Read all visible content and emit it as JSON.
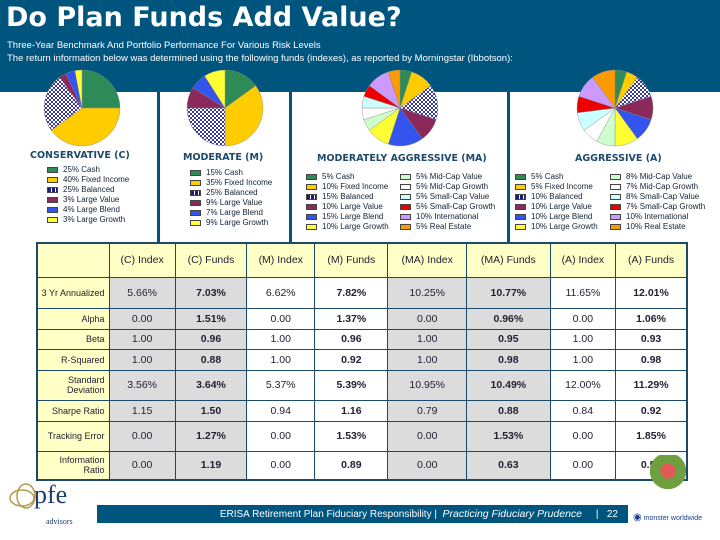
{
  "header": {
    "title": "Do Plan Funds Add Value?",
    "subtitle1": "Three-Year Benchmark And Portfolio Performance For Various Risk Levels",
    "subtitle2": "The return information below was determined using the following funds (indexes), as reported by Morningstar (Ibbotson):"
  },
  "colors": {
    "Cash": "#2e8b57",
    "Fixed Income": "#ffcc00",
    "Balanced": "pattern",
    "Large Value": "#8b2a5a",
    "Large Blend": "#3355ee",
    "Large Growth": "#ffff33",
    "Mid-Cap Value": "#ccffcc",
    "Mid-Cap Growth": "#ffffff",
    "Small-Cap Value": "#ccffff",
    "Small-Cap Growth": "#ee0000",
    "International": "#cc99ff",
    "Real Estate": "#ff9900"
  },
  "pies": [
    {
      "name": "CONSERVATIVE (C)",
      "slices": [
        {
          "label": "25% Cash",
          "cat": "Cash",
          "value": 25
        },
        {
          "label": "40% Fixed Income",
          "cat": "Fixed Income",
          "value": 40
        },
        {
          "label": "25% Balanced",
          "cat": "Balanced",
          "value": 25
        },
        {
          "label": "3% Large Value",
          "cat": "Large Value",
          "value": 3
        },
        {
          "label": "4% Large Blend",
          "cat": "Large Blend",
          "value": 4
        },
        {
          "label": "3% Large Growth",
          "cat": "Large Growth",
          "value": 3
        }
      ]
    },
    {
      "name": "MODERATE (M)",
      "slices": [
        {
          "label": "15% Cash",
          "cat": "Cash",
          "value": 15
        },
        {
          "label": "35% Fixed Income",
          "cat": "Fixed Income",
          "value": 35
        },
        {
          "label": "25% Balanced",
          "cat": "Balanced",
          "value": 25
        },
        {
          "label": "9% Large Value",
          "cat": "Large Value",
          "value": 9
        },
        {
          "label": "7% Large Blend",
          "cat": "Large Blend",
          "value": 7
        },
        {
          "label": "9% Large Growth",
          "cat": "Large Growth",
          "value": 9
        }
      ]
    },
    {
      "name": "MODERATELY AGGRESSIVE (MA)",
      "slices": [
        {
          "label": "5% Cash",
          "cat": "Cash",
          "value": 5
        },
        {
          "label": "10% Fixed Income",
          "cat": "Fixed Income",
          "value": 10
        },
        {
          "label": "15% Balanced",
          "cat": "Balanced",
          "value": 15
        },
        {
          "label": "10% Large Value",
          "cat": "Large Value",
          "value": 10
        },
        {
          "label": "15% Large Blend",
          "cat": "Large Blend",
          "value": 15
        },
        {
          "label": "10% Large Growth",
          "cat": "Large Growth",
          "value": 10
        },
        {
          "label": "5% Mid-Cap Value",
          "cat": "Mid-Cap Value",
          "value": 5
        },
        {
          "label": "5% Mid-Cap Growth",
          "cat": "Mid-Cap Growth",
          "value": 5
        },
        {
          "label": "5% Small-Cap Value",
          "cat": "Small-Cap Value",
          "value": 5
        },
        {
          "label": "5% Small-Cap Growth",
          "cat": "Small-Cap Growth",
          "value": 5
        },
        {
          "label": "10% International",
          "cat": "International",
          "value": 10
        },
        {
          "label": "5% Real Estate",
          "cat": "Real Estate",
          "value": 5
        }
      ]
    },
    {
      "name": "AGGRESSIVE (A)",
      "slices": [
        {
          "label": "5% Cash",
          "cat": "Cash",
          "value": 5
        },
        {
          "label": "5% Fixed Income",
          "cat": "Fixed Income",
          "value": 5
        },
        {
          "label": "10% Balanced",
          "cat": "Balanced",
          "value": 10
        },
        {
          "label": "10% Large Value",
          "cat": "Large Value",
          "value": 10
        },
        {
          "label": "10% Large Blend",
          "cat": "Large Blend",
          "value": 10
        },
        {
          "label": "10% Large Growth",
          "cat": "Large Growth",
          "value": 10
        },
        {
          "label": "8% Mid-Cap Value",
          "cat": "Mid-Cap Value",
          "value": 8
        },
        {
          "label": "7% Mid-Cap Growth",
          "cat": "Mid-Cap Growth",
          "value": 7
        },
        {
          "label": "8% Small-Cap Value",
          "cat": "Small-Cap Value",
          "value": 8
        },
        {
          "label": "7% Small-Cap Growth",
          "cat": "Small-Cap Growth",
          "value": 7
        },
        {
          "label": "10% International",
          "cat": "International",
          "value": 10
        },
        {
          "label": "10% Real Estate",
          "cat": "Real Estate",
          "value": 10
        }
      ]
    }
  ],
  "table": {
    "columns": [
      "(C) Index",
      "(C) Funds",
      "(M) Index",
      "(M) Funds",
      "(MA) Index",
      "(MA) Funds",
      "(A) Index",
      "(A) Funds"
    ],
    "rows": [
      {
        "label": "3 Yr Annualized",
        "values": [
          "5.66%",
          "7.03%",
          "6.62%",
          "7.82%",
          "10.25%",
          "10.77%",
          "11.65%",
          "12.01%"
        ]
      },
      {
        "label": "Alpha",
        "values": [
          "0.00",
          "1.51%",
          "0.00",
          "1.37%",
          "0.00",
          "0.96%",
          "0.00",
          "1.06%"
        ]
      },
      {
        "label": "Beta",
        "values": [
          "1.00",
          "0.96",
          "1.00",
          "0.96",
          "1.00",
          "0.95",
          "1.00",
          "0.93"
        ]
      },
      {
        "label": "R-Squared",
        "values": [
          "1.00",
          "0.88",
          "1.00",
          "0.92",
          "1.00",
          "0.98",
          "1.00",
          "0.98"
        ]
      },
      {
        "label": "Standard Deviation",
        "values": [
          "3.56%",
          "3.64%",
          "5.37%",
          "5.39%",
          "10.95%",
          "10.49%",
          "12.00%",
          "11.29%"
        ]
      },
      {
        "label": "Sharpe Ratio",
        "values": [
          "1.15",
          "1.50",
          "0.94",
          "1.16",
          "0.79",
          "0.88",
          "0.84",
          "0.92"
        ]
      },
      {
        "label": "Tracking Error",
        "values": [
          "0.00",
          "1.27%",
          "0.00",
          "1.53%",
          "0.00",
          "1.53%",
          "0.00",
          "1.85%"
        ]
      },
      {
        "label": "Information Ratio",
        "values": [
          "0.00",
          "1.19",
          "0.00",
          "0.89",
          "0.00",
          "0.63",
          "0.00",
          "0.58"
        ]
      }
    ]
  },
  "footer": {
    "text": "ERISA Retirement Plan Fiduciary Responsibility |",
    "tagline": "Practicing Fiduciary Prudence",
    "sep": "|",
    "page": "22"
  },
  "logo": {
    "name": "pfe",
    "sub": "advisors"
  },
  "partner": {
    "name": "monster worldwide"
  }
}
